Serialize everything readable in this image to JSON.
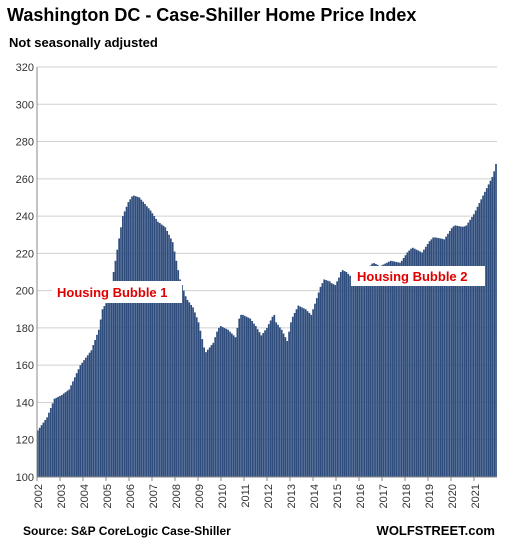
{
  "chart_data": {
    "type": "bar",
    "title": "Washington DC - Case-Shiller Home Price Index",
    "subtitle": "Not seasonally adjusted",
    "ylim": [
      100,
      320
    ],
    "yticks": [
      "100",
      "120",
      "140",
      "160",
      "180",
      "200",
      "220",
      "240",
      "260",
      "280",
      "300",
      "320"
    ],
    "xticks": [
      "2002",
      "2003",
      "2004",
      "2005",
      "2006",
      "2007",
      "2008",
      "2009",
      "2010",
      "2011",
      "2012",
      "2013",
      "2014",
      "2015",
      "2016",
      "2017",
      "2018",
      "2019",
      "2020",
      "2021"
    ],
    "x_start": "2002-01",
    "frequency": "monthly",
    "grid": true,
    "bar_color": "#2e4c7c",
    "series": [
      {
        "values": [
          125.0,
          126.4,
          127.8,
          129.2,
          130.6,
          132.0,
          134.5,
          137.0,
          139.5,
          142.0,
          142.5,
          143.0,
          143.5,
          144.0,
          144.8,
          145.5,
          146.3,
          147.0,
          149.2,
          151.3,
          153.5,
          155.7,
          157.8,
          160.0,
          161.3,
          162.7,
          164.0,
          165.3,
          166.7,
          168.0,
          170.8,
          173.5,
          176.3,
          179.0,
          184.5,
          190.0,
          191.7,
          193.3,
          195.0,
          200.0,
          205.0,
          210.0,
          216.0,
          222.0,
          228.0,
          234.0,
          240.0,
          242.5,
          245.0,
          247.5,
          249.0,
          250.5,
          251.0,
          250.7,
          250.3,
          250.0,
          248.8,
          247.7,
          246.5,
          245.3,
          244.2,
          243.0,
          241.5,
          240.0,
          238.5,
          237.0,
          236.3,
          235.5,
          234.8,
          234.0,
          232.0,
          230.0,
          228.0,
          226.0,
          221.0,
          216.0,
          211.0,
          206.0,
          203.0,
          200.0,
          197.0,
          195.0,
          193.7,
          192.3,
          191.0,
          188.3,
          185.7,
          183.0,
          178.5,
          174.0,
          169.5,
          167.0,
          168.3,
          169.5,
          170.8,
          172.0,
          175.0,
          178.0,
          180.0,
          181.0,
          180.5,
          180.0,
          179.5,
          179.0,
          178.0,
          177.0,
          176.0,
          175.0,
          180.0,
          185.0,
          187.0,
          187.0,
          186.5,
          186.0,
          185.5,
          185.0,
          183.7,
          182.3,
          181.0,
          179.3,
          177.7,
          176.0,
          177.3,
          178.7,
          180.0,
          182.0,
          184.0,
          186.0,
          187.0,
          183.0,
          181.7,
          180.3,
          179.0,
          177.0,
          175.0,
          173.0,
          178.0,
          183.0,
          186.0,
          188.0,
          190.0,
          192.0,
          191.5,
          191.0,
          190.5,
          190.0,
          189.0,
          188.0,
          187.0,
          190.0,
          193.0,
          196.0,
          199.0,
          202.0,
          204.0,
          206.0,
          205.7,
          205.3,
          205.0,
          204.0,
          203.5,
          203.0,
          205.0,
          207.0,
          210.0,
          211.0,
          210.5,
          210.0,
          209.0,
          208.0,
          207.0,
          206.0,
          205.0,
          204.0,
          205.0,
          206.5,
          208.0,
          209.5,
          211.0,
          212.5,
          213.5,
          214.5,
          214.8,
          214.3,
          213.8,
          213.0,
          213.5,
          214.0,
          214.5,
          215.0,
          215.5,
          216.0,
          215.8,
          215.6,
          215.4,
          215.2,
          215.0,
          216.0,
          217.5,
          219.0,
          220.5,
          221.5,
          222.5,
          223.0,
          222.5,
          222.0,
          221.5,
          221.0,
          220.5,
          222.0,
          223.5,
          225.0,
          226.5,
          227.5,
          228.5,
          228.6,
          228.4,
          228.2,
          228.0,
          227.8,
          227.5,
          229.0,
          230.5,
          232.0,
          233.5,
          234.5,
          235.0,
          234.8,
          234.6,
          234.4,
          234.3,
          234.5,
          235.0,
          236.5,
          238.0,
          239.5,
          241.0,
          243.0,
          245.0,
          247.0,
          249.0,
          251.0,
          253.0,
          255.0,
          257.0,
          259.0,
          261.0,
          264.0,
          268.0
        ]
      }
    ],
    "annotations": [
      {
        "label": "Housing Bubble 1"
      },
      {
        "label": "Housing Bubble 2"
      }
    ],
    "source": "Source: S&P CoreLogic Case-Shiller",
    "brand": "WOLFSTREET.com"
  }
}
